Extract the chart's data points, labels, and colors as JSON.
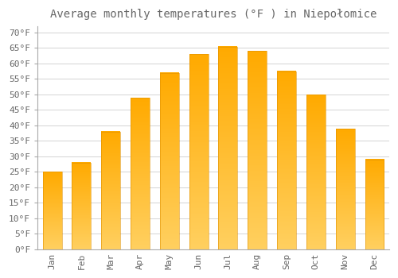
{
  "title": "Average monthly temperatures (°F ) in Niepołomice",
  "months": [
    "Jan",
    "Feb",
    "Mar",
    "Apr",
    "May",
    "Jun",
    "Jul",
    "Aug",
    "Sep",
    "Oct",
    "Nov",
    "Dec"
  ],
  "values": [
    25,
    28,
    38,
    49,
    57,
    63,
    65.5,
    64,
    57.5,
    50,
    39,
    29
  ],
  "bar_color_top": "#FFAA00",
  "bar_color_bottom": "#FFD060",
  "background_color": "#FFFFFF",
  "grid_color": "#CCCCCC",
  "text_color": "#666666",
  "ytick_step": 5,
  "ylim": [
    0,
    72
  ],
  "title_fontsize": 10,
  "tick_fontsize": 8,
  "font_family": "monospace"
}
